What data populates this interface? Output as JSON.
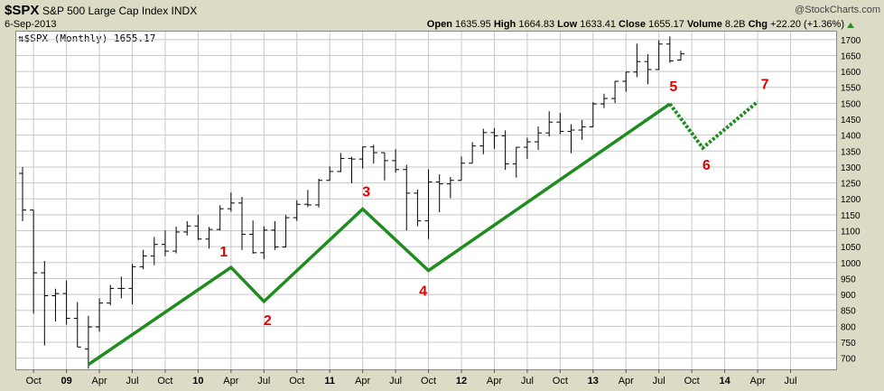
{
  "header": {
    "symbol": "$SPX",
    "name": "S&P 500 Large Cap Index INDX",
    "date": "6-Sep-2013",
    "credit": "@StockCharts.com",
    "open_label": "Open",
    "open": "1635.95",
    "high_label": "High",
    "high": "1664.83",
    "low_label": "Low",
    "low": "1633.41",
    "close_label": "Close",
    "close": "1655.17",
    "volume_label": "Volume",
    "volume": "8.2B",
    "chg_label": "Chg",
    "chg": "+22.20 (+1.36%)"
  },
  "legend": "$SPX (Monthly) 1655.17",
  "colors": {
    "bar": "#000000",
    "wave": "#1e8c1e",
    "wave_label": "#e00000",
    "background": "#dcdcc6",
    "grid": "#c8c8c8"
  },
  "chart_data": {
    "type": "ohlc",
    "interval": "monthly",
    "y_ticks": [
      700,
      750,
      800,
      850,
      900,
      950,
      1000,
      1050,
      1100,
      1150,
      1200,
      1250,
      1300,
      1350,
      1400,
      1450,
      1500,
      1550,
      1600,
      1650,
      1700
    ],
    "ylim": [
      665,
      1725
    ],
    "x_ticks": [
      {
        "label": "Oct",
        "date": "2008-10"
      },
      {
        "label": "09",
        "date": "2009-01",
        "bold": true
      },
      {
        "label": "Apr",
        "date": "2009-04"
      },
      {
        "label": "Jul",
        "date": "2009-07"
      },
      {
        "label": "Oct",
        "date": "2009-10"
      },
      {
        "label": "10",
        "date": "2010-01",
        "bold": true
      },
      {
        "label": "Apr",
        "date": "2010-04"
      },
      {
        "label": "Jul",
        "date": "2010-07"
      },
      {
        "label": "Oct",
        "date": "2010-10"
      },
      {
        "label": "11",
        "date": "2011-01",
        "bold": true
      },
      {
        "label": "Apr",
        "date": "2011-04"
      },
      {
        "label": "Jul",
        "date": "2011-07"
      },
      {
        "label": "Oct",
        "date": "2011-10"
      },
      {
        "label": "12",
        "date": "2012-01",
        "bold": true
      },
      {
        "label": "Apr",
        "date": "2012-04"
      },
      {
        "label": "Jul",
        "date": "2012-07"
      },
      {
        "label": "Oct",
        "date": "2012-10"
      },
      {
        "label": "13",
        "date": "2013-01",
        "bold": true
      },
      {
        "label": "Apr",
        "date": "2013-04"
      },
      {
        "label": "Jul",
        "date": "2013-07"
      },
      {
        "label": "Oct",
        "date": "2013-10"
      },
      {
        "label": "14",
        "date": "2014-01",
        "bold": true
      },
      {
        "label": "Apr",
        "date": "2014-04"
      },
      {
        "label": "Jul",
        "date": "2014-07"
      }
    ],
    "bars": [
      {
        "date": "2008-09",
        "o": 1280,
        "h": 1300,
        "l": 1130,
        "c": 1165
      },
      {
        "date": "2008-10",
        "o": 1165,
        "h": 1165,
        "l": 840,
        "c": 968
      },
      {
        "date": "2008-11",
        "o": 968,
        "h": 1005,
        "l": 740,
        "c": 896
      },
      {
        "date": "2008-12",
        "o": 896,
        "h": 918,
        "l": 815,
        "c": 903
      },
      {
        "date": "2009-01",
        "o": 903,
        "h": 944,
        "l": 805,
        "c": 825
      },
      {
        "date": "2009-02",
        "o": 825,
        "h": 876,
        "l": 735,
        "c": 735
      },
      {
        "date": "2009-03",
        "o": 729,
        "h": 833,
        "l": 667,
        "c": 798
      },
      {
        "date": "2009-04",
        "o": 798,
        "h": 888,
        "l": 783,
        "c": 873
      },
      {
        "date": "2009-05",
        "o": 873,
        "h": 930,
        "l": 866,
        "c": 919
      },
      {
        "date": "2009-06",
        "o": 919,
        "h": 956,
        "l": 888,
        "c": 919
      },
      {
        "date": "2009-07",
        "o": 919,
        "h": 996,
        "l": 869,
        "c": 987
      },
      {
        "date": "2009-08",
        "o": 987,
        "h": 1040,
        "l": 979,
        "c": 1021
      },
      {
        "date": "2009-09",
        "o": 1021,
        "h": 1080,
        "l": 992,
        "c": 1057
      },
      {
        "date": "2009-10",
        "o": 1057,
        "h": 1101,
        "l": 1020,
        "c": 1036
      },
      {
        "date": "2009-11",
        "o": 1036,
        "h": 1113,
        "l": 1029,
        "c": 1096
      },
      {
        "date": "2009-12",
        "o": 1096,
        "h": 1130,
        "l": 1085,
        "c": 1115
      },
      {
        "date": "2010-01",
        "o": 1115,
        "h": 1150,
        "l": 1071,
        "c": 1074
      },
      {
        "date": "2010-02",
        "o": 1074,
        "h": 1112,
        "l": 1044,
        "c": 1104
      },
      {
        "date": "2010-03",
        "o": 1104,
        "h": 1180,
        "l": 1101,
        "c": 1169
      },
      {
        "date": "2010-04",
        "o": 1169,
        "h": 1220,
        "l": 1160,
        "c": 1187
      },
      {
        "date": "2010-05",
        "o": 1187,
        "h": 1206,
        "l": 1040,
        "c": 1089
      },
      {
        "date": "2010-06",
        "o": 1089,
        "h": 1132,
        "l": 1028,
        "c": 1031
      },
      {
        "date": "2010-07",
        "o": 1031,
        "h": 1114,
        "l": 1011,
        "c": 1102
      },
      {
        "date": "2010-08",
        "o": 1102,
        "h": 1130,
        "l": 1040,
        "c": 1049
      },
      {
        "date": "2010-09",
        "o": 1049,
        "h": 1150,
        "l": 1048,
        "c": 1141
      },
      {
        "date": "2010-10",
        "o": 1141,
        "h": 1196,
        "l": 1131,
        "c": 1183
      },
      {
        "date": "2010-11",
        "o": 1183,
        "h": 1228,
        "l": 1174,
        "c": 1181
      },
      {
        "date": "2010-12",
        "o": 1181,
        "h": 1263,
        "l": 1173,
        "c": 1258
      },
      {
        "date": "2011-01",
        "o": 1258,
        "h": 1302,
        "l": 1257,
        "c": 1286
      },
      {
        "date": "2011-02",
        "o": 1286,
        "h": 1344,
        "l": 1284,
        "c": 1327
      },
      {
        "date": "2011-03",
        "o": 1327,
        "h": 1332,
        "l": 1249,
        "c": 1325
      },
      {
        "date": "2011-04",
        "o": 1325,
        "h": 1364,
        "l": 1295,
        "c": 1363
      },
      {
        "date": "2011-05",
        "o": 1363,
        "h": 1370,
        "l": 1311,
        "c": 1345
      },
      {
        "date": "2011-06",
        "o": 1345,
        "h": 1345,
        "l": 1258,
        "c": 1320
      },
      {
        "date": "2011-07",
        "o": 1320,
        "h": 1356,
        "l": 1282,
        "c": 1292
      },
      {
        "date": "2011-08",
        "o": 1292,
        "h": 1307,
        "l": 1101,
        "c": 1218
      },
      {
        "date": "2011-09",
        "o": 1218,
        "h": 1229,
        "l": 1114,
        "c": 1131
      },
      {
        "date": "2011-10",
        "o": 1131,
        "h": 1293,
        "l": 1074,
        "c": 1253
      },
      {
        "date": "2011-11",
        "o": 1253,
        "h": 1277,
        "l": 1158,
        "c": 1247
      },
      {
        "date": "2011-12",
        "o": 1247,
        "h": 1269,
        "l": 1202,
        "c": 1258
      },
      {
        "date": "2012-01",
        "o": 1258,
        "h": 1333,
        "l": 1258,
        "c": 1312
      },
      {
        "date": "2012-02",
        "o": 1312,
        "h": 1378,
        "l": 1312,
        "c": 1366
      },
      {
        "date": "2012-03",
        "o": 1366,
        "h": 1420,
        "l": 1340,
        "c": 1408
      },
      {
        "date": "2012-04",
        "o": 1408,
        "h": 1422,
        "l": 1357,
        "c": 1398
      },
      {
        "date": "2012-05",
        "o": 1398,
        "h": 1415,
        "l": 1291,
        "c": 1310
      },
      {
        "date": "2012-06",
        "o": 1310,
        "h": 1363,
        "l": 1267,
        "c": 1362
      },
      {
        "date": "2012-07",
        "o": 1362,
        "h": 1392,
        "l": 1325,
        "c": 1379
      },
      {
        "date": "2012-08",
        "o": 1379,
        "h": 1427,
        "l": 1354,
        "c": 1407
      },
      {
        "date": "2012-09",
        "o": 1407,
        "h": 1475,
        "l": 1396,
        "c": 1441
      },
      {
        "date": "2012-10",
        "o": 1441,
        "h": 1470,
        "l": 1403,
        "c": 1412
      },
      {
        "date": "2012-11",
        "o": 1412,
        "h": 1434,
        "l": 1343,
        "c": 1416
      },
      {
        "date": "2012-12",
        "o": 1416,
        "h": 1448,
        "l": 1385,
        "c": 1426
      },
      {
        "date": "2013-01",
        "o": 1426,
        "h": 1504,
        "l": 1426,
        "c": 1498
      },
      {
        "date": "2013-02",
        "o": 1498,
        "h": 1530,
        "l": 1485,
        "c": 1515
      },
      {
        "date": "2013-03",
        "o": 1515,
        "h": 1570,
        "l": 1501,
        "c": 1569
      },
      {
        "date": "2013-04",
        "o": 1569,
        "h": 1598,
        "l": 1536,
        "c": 1598
      },
      {
        "date": "2013-05",
        "o": 1598,
        "h": 1687,
        "l": 1582,
        "c": 1631
      },
      {
        "date": "2013-06",
        "o": 1631,
        "h": 1654,
        "l": 1560,
        "c": 1606
      },
      {
        "date": "2013-07",
        "o": 1606,
        "h": 1698,
        "l": 1605,
        "c": 1686
      },
      {
        "date": "2013-08",
        "o": 1686,
        "h": 1710,
        "l": 1627,
        "c": 1633
      },
      {
        "date": "2013-09",
        "o": 1635.95,
        "h": 1664.83,
        "l": 1633.41,
        "c": 1655.17
      }
    ],
    "wave_path": [
      {
        "label": "",
        "date": "2009-03",
        "y": 680
      },
      {
        "label": "1",
        "date": "2010-04",
        "y": 985
      },
      {
        "label": "2",
        "date": "2010-07",
        "y": 878
      },
      {
        "label": "3",
        "date": "2011-04",
        "y": 1168
      },
      {
        "label": "4",
        "date": "2011-10",
        "y": 975
      },
      {
        "label": "5",
        "date": "2013-08",
        "y": 1498
      }
    ],
    "wave_projection": [
      {
        "label": "5",
        "date": "2013-08",
        "y": 1498
      },
      {
        "label": "6",
        "date": "2013-11",
        "y": 1360
      },
      {
        "label": "7",
        "date": "2014-04",
        "y": 1505
      }
    ]
  }
}
